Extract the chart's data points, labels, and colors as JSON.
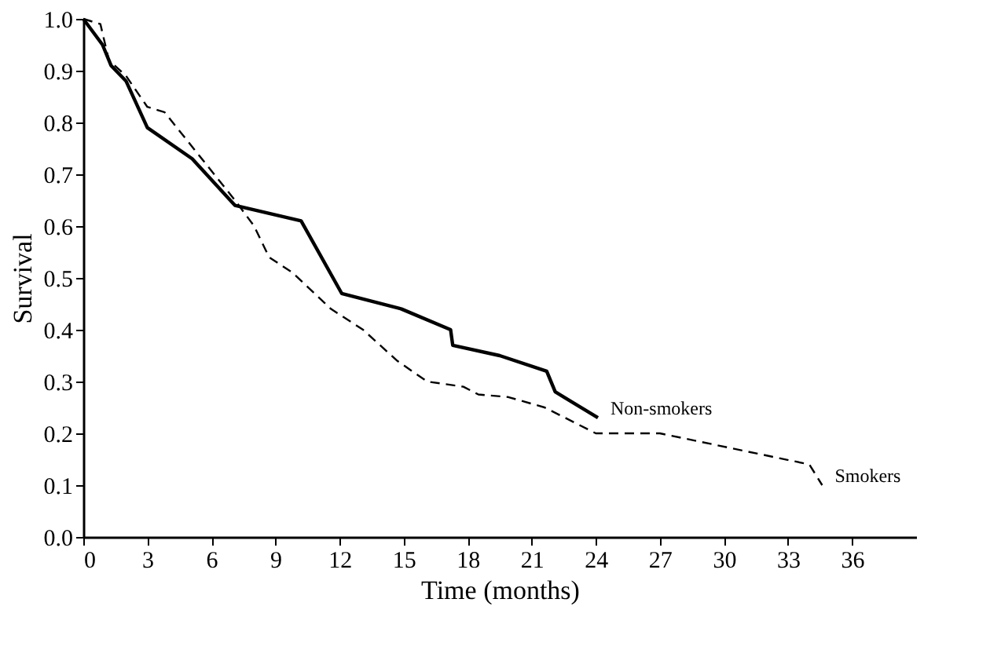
{
  "chart_data": {
    "type": "line",
    "xlabel": "Time (months)",
    "ylabel": "Survival",
    "xlim": [
      0,
      39
    ],
    "xticks": [
      0,
      3,
      6,
      9,
      12,
      15,
      18,
      21,
      24,
      27,
      30,
      33,
      36
    ],
    "ylim": [
      0,
      1
    ],
    "yticks": [
      {
        "value": 0,
        "label": "0.0"
      },
      0.1,
      0.2,
      0.3,
      0.4,
      0.5,
      0.6,
      0.7,
      0.8,
      0.9,
      {
        "value": 1,
        "label": "1.0"
      }
    ],
    "grid": false,
    "legend": false,
    "marker": "none",
    "series": [
      {
        "name": "Non-smokers",
        "color": "#000000",
        "line_style": "solid",
        "x": [
          0,
          0.9,
          1.3,
          2.0,
          3.0,
          5.1,
          7.1,
          10.2,
          12.1,
          14.9,
          17.2,
          17.3,
          19.5,
          21.7,
          22.1,
          24.1
        ],
        "values": [
          1.0,
          0.95,
          0.91,
          0.88,
          0.79,
          0.73,
          0.64,
          0.61,
          0.47,
          0.44,
          0.4,
          0.37,
          0.35,
          0.32,
          0.28,
          0.23
        ]
      },
      {
        "name": "Smokers",
        "color": "#000000",
        "line_style": "dashed",
        "x": [
          0,
          0.8,
          1.2,
          2.0,
          3.0,
          3.8,
          7.1,
          8.0,
          8.7,
          9.8,
          11.6,
          13.1,
          14.7,
          16.1,
          17.8,
          18.5,
          19.9,
          21.6,
          24.0,
          27.0,
          34.0,
          34.6
        ],
        "values": [
          1.0,
          0.99,
          0.92,
          0.89,
          0.83,
          0.82,
          0.65,
          0.6,
          0.54,
          0.51,
          0.44,
          0.4,
          0.34,
          0.3,
          0.29,
          0.275,
          0.27,
          0.25,
          0.2,
          0.2,
          0.14,
          0.1
        ]
      }
    ]
  }
}
